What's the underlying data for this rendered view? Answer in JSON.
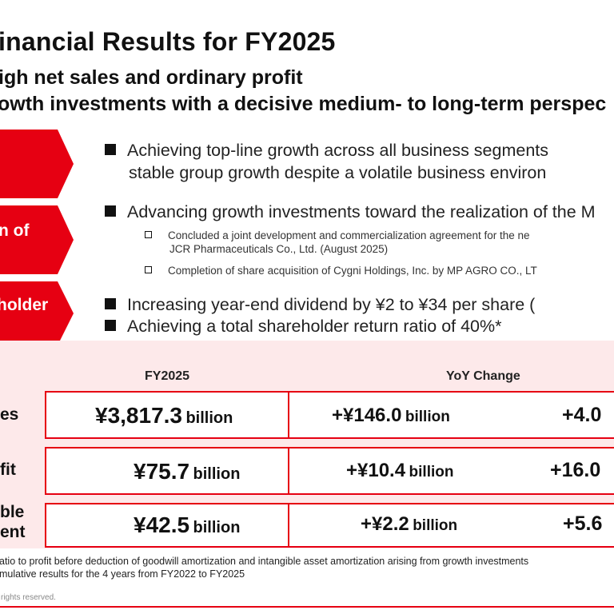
{
  "header": {
    "title": "inancial Results for FY2025",
    "subtitle1": "igh net sales and ordinary profit",
    "subtitle2": "owth investments with a decisive medium- to long-term perspec"
  },
  "chevrons": [
    {
      "label": ""
    },
    {
      "label": "n of"
    },
    {
      "label": "holder"
    }
  ],
  "bullets": {
    "b1_line1": "Achieving top-line growth across all business segments",
    "b1_line2": "stable group growth despite a volatile business environ",
    "b2": "Advancing growth investments toward the realization of the M",
    "b2_sub1_line1": "Concluded a joint development and commercialization agreement for the ne",
    "b2_sub1_line2": "JCR Pharmaceuticals Co., Ltd. (August 2025)",
    "b2_sub2": "Completion of share acquisition of Cygni Holdings, Inc. by MP AGRO CO., LT",
    "b3": "Increasing year-end dividend by ¥2 to ¥34 per share (",
    "b4": "Achieving a total shareholder return ratio of 40%*"
  },
  "table": {
    "col_fy": "FY2025",
    "col_yoy": "YoY Change",
    "rows": [
      {
        "label_line1": "es",
        "label_line2": "",
        "fy_amount": "¥3,817.3",
        "fy_unit": "billion",
        "yoy_amount": "+¥146.0",
        "yoy_unit": "billion",
        "yoy_pct": "+4.0"
      },
      {
        "label_line1": "fit",
        "label_line2": "",
        "fy_amount": "¥75.7",
        "fy_unit": "billion",
        "yoy_amount": "+¥10.4",
        "yoy_unit": "billion",
        "yoy_pct": "+16.0"
      },
      {
        "label_line1": "ble",
        "label_line2": "ent",
        "fy_amount": "¥42.5",
        "fy_unit": "billion",
        "yoy_amount": "+¥2.2",
        "yoy_unit": "billion",
        "yoy_pct": "+5.6"
      }
    ]
  },
  "footnotes": {
    "line1": "atio to profit before deduction of goodwill amortization and intangible asset amortization arising from growth investments",
    "line2": "mulative results for the 4 years from FY2022 to FY2025"
  },
  "copyright": "l rights reserved.",
  "colors": {
    "accent": "#e60012",
    "panel": "#fde9ea"
  }
}
